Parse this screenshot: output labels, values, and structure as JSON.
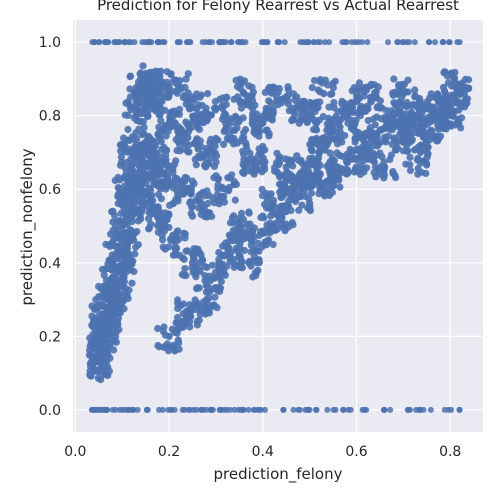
{
  "chart_data": {
    "type": "scatter",
    "title": "Prediction for Felony Rearrest vs Actual Rearrest",
    "xlabel": "prediction_felony",
    "ylabel": "prediction_nonfelony",
    "xlim": [
      -0.005,
      0.87
    ],
    "ylim": [
      -0.06,
      1.06
    ],
    "xticks": [
      "0.0",
      "0.2",
      "0.4",
      "0.6",
      "0.8"
    ],
    "yticks": [
      "0.0",
      "0.2",
      "0.4",
      "0.6",
      "0.8",
      "1.0"
    ],
    "grid": true,
    "point_color": "#4c72b0",
    "background_color": "#eaeaf2",
    "grid_color": "#ffffff",
    "series": [
      {
        "values_note": "",
        "points_top_row": {
          "y": 1.0,
          "x_range": [
            0.035,
            0.83
          ]
        },
        "points_bottom_row": {
          "y": 0.0,
          "x_range": [
            0.035,
            0.83
          ]
        },
        "cloud": [
          [
            0.04,
            0.11
          ],
          [
            0.05,
            0.13
          ],
          [
            0.05,
            0.18
          ],
          [
            0.06,
            0.2
          ],
          [
            0.06,
            0.26
          ],
          [
            0.07,
            0.22
          ],
          [
            0.07,
            0.3
          ],
          [
            0.08,
            0.28
          ],
          [
            0.08,
            0.36
          ],
          [
            0.09,
            0.32
          ],
          [
            0.09,
            0.42
          ],
          [
            0.1,
            0.38
          ],
          [
            0.1,
            0.5
          ],
          [
            0.11,
            0.45
          ],
          [
            0.11,
            0.6
          ],
          [
            0.12,
            0.55
          ],
          [
            0.12,
            0.7
          ],
          [
            0.13,
            0.62
          ],
          [
            0.13,
            0.8
          ],
          [
            0.14,
            0.72
          ],
          [
            0.14,
            0.88
          ],
          [
            0.15,
            0.66
          ],
          [
            0.15,
            0.84
          ],
          [
            0.16,
            0.58
          ],
          [
            0.16,
            0.9
          ],
          [
            0.17,
            0.7
          ],
          [
            0.18,
            0.52
          ],
          [
            0.18,
            0.86
          ],
          [
            0.19,
            0.64
          ],
          [
            0.2,
            0.2
          ],
          [
            0.2,
            0.78
          ],
          [
            0.21,
            0.46
          ],
          [
            0.22,
            0.88
          ],
          [
            0.23,
            0.6
          ],
          [
            0.24,
            0.26
          ],
          [
            0.24,
            0.74
          ],
          [
            0.25,
            0.4
          ],
          [
            0.26,
            0.82
          ],
          [
            0.27,
            0.56
          ],
          [
            0.28,
            0.3
          ],
          [
            0.28,
            0.7
          ],
          [
            0.3,
            0.36
          ],
          [
            0.3,
            0.82
          ],
          [
            0.32,
            0.6
          ],
          [
            0.33,
            0.42
          ],
          [
            0.34,
            0.76
          ],
          [
            0.35,
            0.5
          ],
          [
            0.36,
            0.86
          ],
          [
            0.37,
            0.4
          ],
          [
            0.38,
            0.68
          ],
          [
            0.4,
            0.48
          ],
          [
            0.4,
            0.78
          ],
          [
            0.42,
            0.56
          ],
          [
            0.43,
            0.84
          ],
          [
            0.44,
            0.52
          ],
          [
            0.45,
            0.66
          ],
          [
            0.46,
            0.6
          ],
          [
            0.47,
            0.82
          ],
          [
            0.48,
            0.58
          ],
          [
            0.5,
            0.64
          ],
          [
            0.5,
            0.8
          ],
          [
            0.52,
            0.7
          ],
          [
            0.53,
            0.86
          ],
          [
            0.54,
            0.62
          ],
          [
            0.55,
            0.76
          ],
          [
            0.56,
            0.66
          ],
          [
            0.58,
            0.8
          ],
          [
            0.6,
            0.68
          ],
          [
            0.6,
            0.84
          ],
          [
            0.62,
            0.72
          ],
          [
            0.63,
            0.85
          ],
          [
            0.65,
            0.76
          ],
          [
            0.66,
            0.66
          ],
          [
            0.68,
            0.8
          ],
          [
            0.7,
            0.74
          ],
          [
            0.7,
            0.86
          ],
          [
            0.72,
            0.78
          ],
          [
            0.73,
            0.68
          ],
          [
            0.75,
            0.82
          ],
          [
            0.76,
            0.76
          ],
          [
            0.78,
            0.84
          ],
          [
            0.8,
            0.8
          ],
          [
            0.81,
            0.88
          ],
          [
            0.83,
            0.86
          ]
        ]
      }
    ]
  }
}
